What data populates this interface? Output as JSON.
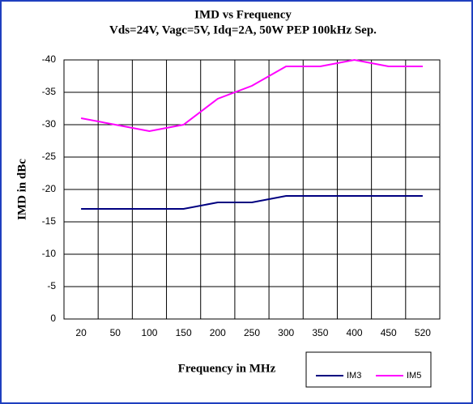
{
  "chart_data": {
    "type": "line",
    "title": "IMD vs Frequency",
    "subtitle": "Vds=24V, Vagc=5V, Idq=2A,  50W PEP 100kHz Sep.",
    "x_label": "Frequency in MHz",
    "y_label": "IMD in dBc",
    "categories": [
      "20",
      "50",
      "100",
      "150",
      "200",
      "250",
      "300",
      "350",
      "400",
      "450",
      "520"
    ],
    "series": [
      {
        "name": "IM3",
        "color": "#000080",
        "values": [
          -17,
          -17,
          -17,
          -17,
          -18,
          -18,
          -19,
          -19,
          -19,
          -19,
          -19
        ]
      },
      {
        "name": "IM5",
        "color": "#ff00ff",
        "values": [
          -31,
          -30,
          -29,
          -30,
          -34,
          -36,
          -39,
          -39,
          -40,
          -39,
          -39
        ]
      }
    ],
    "ylim": [
      0,
      -40
    ],
    "yticks": [
      0,
      -5,
      -10,
      -15,
      -20,
      -25,
      -30,
      -35,
      -40
    ],
    "grid": true,
    "legend": "bottom-right"
  }
}
